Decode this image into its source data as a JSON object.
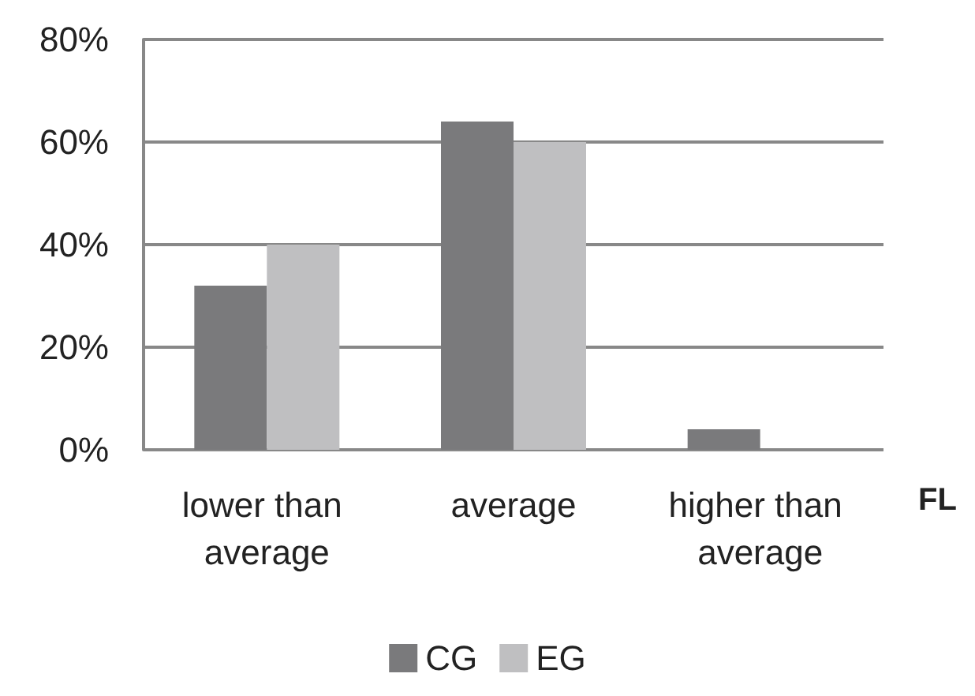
{
  "chart_data": {
    "type": "bar",
    "xlabel": "FL",
    "categories": [
      "lower than average",
      "average",
      "higher than average"
    ],
    "series": [
      {
        "name": "CG",
        "color": "#7a7a7c",
        "values": [
          32,
          64,
          4
        ]
      },
      {
        "name": "EG",
        "color": "#bfbfc1",
        "values": [
          40,
          60,
          0
        ]
      }
    ],
    "ylim": [
      0,
      80
    ],
    "yticks": [
      {
        "value": 0,
        "label": "0%"
      },
      {
        "value": 20,
        "label": "20%"
      },
      {
        "value": 40,
        "label": "40%"
      },
      {
        "value": 60,
        "label": "60%"
      },
      {
        "value": 80,
        "label": "80%"
      }
    ],
    "grid": "y",
    "legend": "bottom"
  }
}
